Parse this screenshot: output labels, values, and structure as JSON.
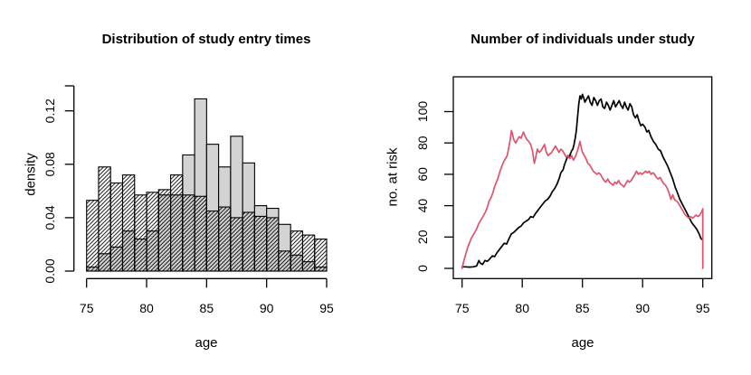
{
  "figure": {
    "background": "#ffffff"
  },
  "chart_data": [
    {
      "type": "bar",
      "subtype": "overlaid-histograms",
      "title": "Distribution of study entry times",
      "xlabel": "age",
      "ylabel": "density",
      "xlim": [
        75,
        95
      ],
      "ylim": [
        0,
        0.14
      ],
      "grid": false,
      "bin_start": 75,
      "bin_width": 1,
      "xticks": [
        75,
        80,
        85,
        90,
        95
      ],
      "ytick_values": [
        0,
        0.04,
        0.08,
        0.12
      ],
      "ytick_labels": [
        "0.00",
        "0.04",
        "0.08",
        "0.12"
      ],
      "series": [
        {
          "name": "gray-filled-histogram",
          "style": "fill",
          "fill_color": "#d3d3d3",
          "border_color": "#000000",
          "values": [
            0.003,
            0.013,
            0.018,
            0.03,
            0.024,
            0.03,
            0.057,
            0.057,
            0.087,
            0.129,
            0.095,
            0.078,
            0.101,
            0.081,
            0.049,
            0.047,
            0.035,
            0.012,
            0.007,
            0.003
          ]
        },
        {
          "name": "hatched-histogram",
          "style": "hatch",
          "fill_color": "none",
          "border_color": "#000000",
          "values": [
            0.053,
            0.078,
            0.066,
            0.072,
            0.057,
            0.059,
            0.061,
            0.072,
            0.057,
            0.056,
            0.045,
            0.048,
            0.04,
            0.044,
            0.041,
            0.04,
            0.015,
            0.03,
            0.027,
            0.024
          ]
        }
      ]
    },
    {
      "type": "line",
      "title": "Number of individuals under study",
      "xlabel": "age",
      "ylabel": "no. at risk",
      "xlim": [
        75,
        95
      ],
      "ylim": [
        0,
        112
      ],
      "grid": false,
      "box": true,
      "xticks": [
        75,
        80,
        85,
        90,
        95
      ],
      "ytick_values": [
        0,
        20,
        40,
        60,
        80,
        100
      ],
      "ytick_labels": [
        "0",
        "20",
        "40",
        "60",
        "80",
        "100"
      ],
      "series": [
        {
          "name": "black-line",
          "color": "#000000",
          "points": [
            [
              75.0,
              1
            ],
            [
              75.3,
              1
            ],
            [
              75.6,
              0.8
            ],
            [
              75.9,
              1
            ],
            [
              76.2,
              1.5
            ],
            [
              76.4,
              5
            ],
            [
              76.5,
              3.5
            ],
            [
              76.7,
              2.5
            ],
            [
              76.9,
              5
            ],
            [
              77.1,
              4.5
            ],
            [
              77.3,
              6
            ],
            [
              77.5,
              8
            ],
            [
              77.7,
              7.5
            ],
            [
              77.9,
              10
            ],
            [
              78.1,
              12
            ],
            [
              78.3,
              14
            ],
            [
              78.5,
              16
            ],
            [
              78.7,
              15.5
            ],
            [
              78.9,
              19
            ],
            [
              79.1,
              22
            ],
            [
              79.3,
              23
            ],
            [
              79.5,
              24.5
            ],
            [
              79.7,
              26
            ],
            [
              79.9,
              27
            ],
            [
              80.1,
              29
            ],
            [
              80.3,
              30
            ],
            [
              80.5,
              31
            ],
            [
              80.7,
              33
            ],
            [
              80.9,
              32.5
            ],
            [
              81.1,
              35
            ],
            [
              81.3,
              37
            ],
            [
              81.5,
              39
            ],
            [
              81.7,
              41
            ],
            [
              81.9,
              43
            ],
            [
              82.1,
              44
            ],
            [
              82.3,
              46
            ],
            [
              82.5,
              49
            ],
            [
              82.7,
              51
            ],
            [
              82.9,
              54
            ],
            [
              83.1,
              58
            ],
            [
              83.2,
              61
            ],
            [
              83.4,
              63
            ],
            [
              83.5,
              66
            ],
            [
              83.7,
              70
            ],
            [
              83.8,
              72
            ],
            [
              83.9,
              71
            ],
            [
              84.0,
              73
            ],
            [
              84.1,
              75
            ],
            [
              84.2,
              76
            ],
            [
              84.3,
              79
            ],
            [
              84.4,
              83
            ],
            [
              84.5,
              88
            ],
            [
              84.6,
              97
            ],
            [
              84.7,
              105
            ],
            [
              84.8,
              110
            ],
            [
              84.9,
              108
            ],
            [
              85.0,
              111
            ],
            [
              85.1,
              109
            ],
            [
              85.2,
              106
            ],
            [
              85.35,
              108
            ],
            [
              85.5,
              110
            ],
            [
              85.65,
              106
            ],
            [
              85.8,
              104
            ],
            [
              85.95,
              109
            ],
            [
              86.1,
              107
            ],
            [
              86.25,
              104
            ],
            [
              86.4,
              107
            ],
            [
              86.55,
              108
            ],
            [
              86.7,
              103
            ],
            [
              86.85,
              102
            ],
            [
              87.0,
              106
            ],
            [
              87.15,
              104
            ],
            [
              87.3,
              101
            ],
            [
              87.45,
              104
            ],
            [
              87.6,
              107
            ],
            [
              87.75,
              103
            ],
            [
              87.9,
              105
            ],
            [
              88.05,
              107
            ],
            [
              88.2,
              104
            ],
            [
              88.35,
              102
            ],
            [
              88.5,
              106
            ],
            [
              88.65,
              103
            ],
            [
              88.8,
              101
            ],
            [
              88.95,
              105
            ],
            [
              89.1,
              103
            ],
            [
              89.25,
              98
            ],
            [
              89.4,
              96
            ],
            [
              89.55,
              98
            ],
            [
              89.7,
              94
            ],
            [
              89.85,
              91
            ],
            [
              90.0,
              92
            ],
            [
              90.2,
              90
            ],
            [
              90.35,
              87
            ],
            [
              90.5,
              88
            ],
            [
              90.7,
              84
            ],
            [
              90.9,
              81
            ],
            [
              91.1,
              79
            ],
            [
              91.3,
              76
            ],
            [
              91.5,
              75
            ],
            [
              91.7,
              71
            ],
            [
              91.9,
              68
            ],
            [
              92.1,
              65
            ],
            [
              92.3,
              61
            ],
            [
              92.5,
              57
            ],
            [
              92.7,
              52
            ],
            [
              92.9,
              48
            ],
            [
              93.1,
              44
            ],
            [
              93.3,
              41
            ],
            [
              93.5,
              38
            ],
            [
              93.7,
              35
            ],
            [
              93.9,
              32
            ],
            [
              94.1,
              29
            ],
            [
              94.3,
              27
            ],
            [
              94.5,
              25
            ],
            [
              94.7,
              22
            ],
            [
              94.85,
              19
            ],
            [
              95.0,
              18
            ]
          ]
        },
        {
          "name": "red-line",
          "color": "#df536b",
          "points": [
            [
              75.0,
              0
            ],
            [
              75.15,
              5
            ],
            [
              75.3,
              9
            ],
            [
              75.45,
              13
            ],
            [
              75.6,
              16
            ],
            [
              75.75,
              19
            ],
            [
              75.9,
              21
            ],
            [
              76.05,
              23
            ],
            [
              76.2,
              25
            ],
            [
              76.35,
              28
            ],
            [
              76.5,
              30
            ],
            [
              76.65,
              32
            ],
            [
              76.8,
              34
            ],
            [
              76.95,
              36
            ],
            [
              77.1,
              39
            ],
            [
              77.25,
              43
            ],
            [
              77.4,
              45
            ],
            [
              77.55,
              48
            ],
            [
              77.7,
              52
            ],
            [
              77.85,
              55
            ],
            [
              78.0,
              58
            ],
            [
              78.15,
              62
            ],
            [
              78.3,
              65
            ],
            [
              78.45,
              68
            ],
            [
              78.6,
              70
            ],
            [
              78.75,
              72
            ],
            [
              78.9,
              78
            ],
            [
              79.0,
              82
            ],
            [
              79.1,
              88
            ],
            [
              79.2,
              85
            ],
            [
              79.3,
              82
            ],
            [
              79.45,
              80
            ],
            [
              79.6,
              82
            ],
            [
              79.75,
              84
            ],
            [
              79.9,
              83
            ],
            [
              80.0,
              85
            ],
            [
              80.1,
              87
            ],
            [
              80.25,
              84
            ],
            [
              80.4,
              82
            ],
            [
              80.55,
              81
            ],
            [
              80.7,
              79
            ],
            [
              80.85,
              75
            ],
            [
              81.0,
              67
            ],
            [
              81.1,
              70
            ],
            [
              81.25,
              76
            ],
            [
              81.4,
              74
            ],
            [
              81.55,
              75
            ],
            [
              81.7,
              77
            ],
            [
              81.85,
              79
            ],
            [
              82.0,
              74
            ],
            [
              82.15,
              72
            ],
            [
              82.3,
              73
            ],
            [
              82.45,
              74
            ],
            [
              82.6,
              76
            ],
            [
              82.75,
              78
            ],
            [
              82.9,
              76
            ],
            [
              83.05,
              74
            ],
            [
              83.2,
              76
            ],
            [
              83.35,
              75
            ],
            [
              83.5,
              73
            ],
            [
              83.65,
              71
            ],
            [
              83.8,
              72
            ],
            [
              83.95,
              70
            ],
            [
              84.1,
              72
            ],
            [
              84.25,
              69
            ],
            [
              84.4,
              71
            ],
            [
              84.55,
              74
            ],
            [
              84.7,
              78
            ],
            [
              84.8,
              81
            ],
            [
              84.9,
              77
            ],
            [
              85.0,
              74
            ],
            [
              85.15,
              72
            ],
            [
              85.3,
              70
            ],
            [
              85.45,
              67
            ],
            [
              85.6,
              66
            ],
            [
              85.75,
              64
            ],
            [
              85.9,
              62
            ],
            [
              86.05,
              61
            ],
            [
              86.2,
              60
            ],
            [
              86.35,
              61
            ],
            [
              86.5,
              60
            ],
            [
              86.65,
              58
            ],
            [
              86.8,
              56
            ],
            [
              86.95,
              55
            ],
            [
              87.1,
              57
            ],
            [
              87.25,
              55
            ],
            [
              87.4,
              54
            ],
            [
              87.55,
              53
            ],
            [
              87.7,
              55
            ],
            [
              87.85,
              54
            ],
            [
              88.0,
              56
            ],
            [
              88.15,
              54
            ],
            [
              88.3,
              53
            ],
            [
              88.45,
              52
            ],
            [
              88.6,
              54
            ],
            [
              88.75,
              56
            ],
            [
              88.9,
              55
            ],
            [
              89.05,
              56
            ],
            [
              89.2,
              58
            ],
            [
              89.35,
              60
            ],
            [
              89.5,
              62
            ],
            [
              89.65,
              60
            ],
            [
              89.8,
              61
            ],
            [
              89.95,
              60
            ],
            [
              90.1,
              61
            ],
            [
              90.25,
              62
            ],
            [
              90.4,
              61
            ],
            [
              90.55,
              62
            ],
            [
              90.7,
              60
            ],
            [
              90.85,
              61
            ],
            [
              91.0,
              60
            ],
            [
              91.15,
              58
            ],
            [
              91.3,
              57
            ],
            [
              91.45,
              58
            ],
            [
              91.6,
              56
            ],
            [
              91.75,
              54
            ],
            [
              91.9,
              53
            ],
            [
              92.05,
              51
            ],
            [
              92.2,
              48
            ],
            [
              92.35,
              44
            ],
            [
              92.5,
              47
            ],
            [
              92.65,
              44
            ],
            [
              92.8,
              43
            ],
            [
              92.95,
              42
            ],
            [
              93.1,
              40
            ],
            [
              93.25,
              38
            ],
            [
              93.4,
              36
            ],
            [
              93.55,
              34
            ],
            [
              93.7,
              33
            ],
            [
              93.85,
              32
            ],
            [
              94.0,
              33
            ],
            [
              94.15,
              32
            ],
            [
              94.3,
              33
            ],
            [
              94.45,
              34
            ],
            [
              94.6,
              33
            ],
            [
              94.75,
              34
            ],
            [
              94.9,
              36
            ],
            [
              95.0,
              38
            ],
            [
              95.0,
              0
            ]
          ]
        }
      ]
    }
  ]
}
